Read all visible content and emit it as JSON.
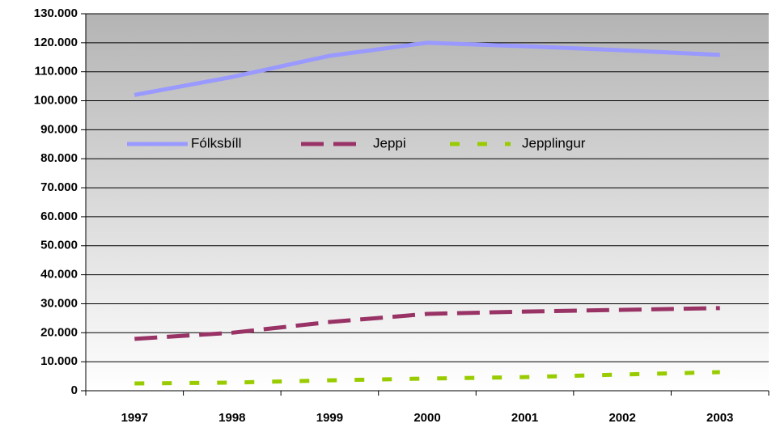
{
  "chart_data": {
    "type": "line",
    "categories": [
      "1997",
      "1998",
      "1999",
      "2000",
      "2001",
      "2002",
      "2003"
    ],
    "series": [
      {
        "name": "Fólksbíll",
        "color": "#9999ff",
        "values": [
          102000,
          108200,
          115500,
          120000,
          118800,
          117400,
          115800
        ]
      },
      {
        "name": "Jeppi",
        "color": "#993366",
        "values": [
          17900,
          20000,
          23700,
          26500,
          27300,
          27900,
          28500
        ]
      },
      {
        "name": "Jepplingur",
        "color": "#99cc00",
        "values": [
          2500,
          2800,
          3600,
          4200,
          4700,
          5600,
          6400
        ]
      }
    ],
    "ylim": [
      0,
      130000
    ],
    "yticks": [
      0,
      {
        "value": 10000,
        "label": "10.000"
      },
      {
        "value": 20000,
        "label": "20.000"
      },
      {
        "value": 30000,
        "label": "30.000"
      },
      {
        "value": 40000,
        "label": "40.000"
      },
      {
        "value": 50000,
        "label": "50.000"
      },
      {
        "value": 60000,
        "label": "60.000"
      },
      {
        "value": 70000,
        "label": "70.000"
      },
      {
        "value": 80000,
        "label": "80.000"
      },
      {
        "value": 90000,
        "label": "90.000"
      },
      {
        "value": 100000,
        "label": "100.000"
      },
      {
        "value": 110000,
        "label": "110.000"
      },
      {
        "value": 120000,
        "label": "120.000"
      },
      {
        "value": 130000,
        "label": "130.000"
      }
    ],
    "grid": true,
    "legend": "upper left"
  }
}
